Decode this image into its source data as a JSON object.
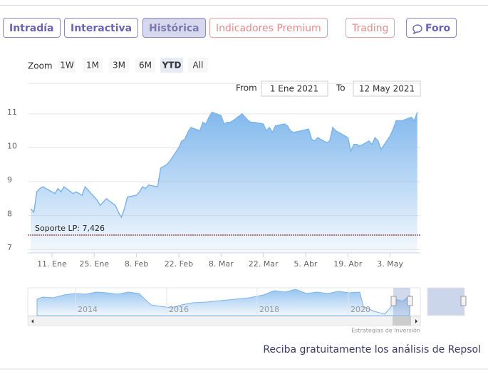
{
  "tabs": [
    "Intradía",
    "Interactiva",
    "Histórica",
    "Indicadores Premium",
    "Trading",
    "Foro"
  ],
  "zoom": {
    "label": "Zoom",
    "buttons": [
      "1W",
      "1M",
      "3M",
      "6M",
      "YTD",
      "All"
    ]
  },
  "range": {
    "from_label": "From",
    "from": "1 Ene 2021",
    "to_label": "To",
    "to": "12 May 2021"
  },
  "navigator": {
    "labels": [
      "2014",
      "2016",
      "2018",
      "2020"
    ]
  },
  "credits": "Estrategias de Inversión",
  "footer": "Reciba gratuitamente los análisis de Repsol",
  "chart_data": {
    "type": "area",
    "color": "#7cb5ec",
    "x": [
      "2021-01-04",
      "2021-01-05",
      "2021-01-06",
      "2021-01-07",
      "2021-01-08",
      "2021-01-11",
      "2021-01-12",
      "2021-01-13",
      "2021-01-14",
      "2021-01-15",
      "2021-01-18",
      "2021-01-19",
      "2021-01-20",
      "2021-01-21",
      "2021-01-22",
      "2021-01-25",
      "2021-01-26",
      "2021-01-27",
      "2021-01-28",
      "2021-01-29",
      "2021-02-01",
      "2021-02-02",
      "2021-02-03",
      "2021-02-04",
      "2021-02-05",
      "2021-02-08",
      "2021-02-09",
      "2021-02-10",
      "2021-02-11",
      "2021-02-12",
      "2021-02-15",
      "2021-02-16",
      "2021-02-17",
      "2021-02-18",
      "2021-02-19",
      "2021-02-22",
      "2021-02-23",
      "2021-02-24",
      "2021-02-25",
      "2021-02-26",
      "2021-03-01",
      "2021-03-02",
      "2021-03-03",
      "2021-03-04",
      "2021-03-05",
      "2021-03-08",
      "2021-03-09",
      "2021-03-10",
      "2021-03-11",
      "2021-03-12",
      "2021-03-15",
      "2021-03-16",
      "2021-03-17",
      "2021-03-18",
      "2021-03-19",
      "2021-03-22",
      "2021-03-23",
      "2021-03-24",
      "2021-03-25",
      "2021-03-26",
      "2021-03-29",
      "2021-03-30",
      "2021-03-31",
      "2021-04-01",
      "2021-04-06",
      "2021-04-07",
      "2021-04-08",
      "2021-04-09",
      "2021-04-12",
      "2021-04-13",
      "2021-04-14",
      "2021-04-15",
      "2021-04-16",
      "2021-04-19",
      "2021-04-20",
      "2021-04-21",
      "2021-04-22",
      "2021-04-23",
      "2021-04-26",
      "2021-04-27",
      "2021-04-28",
      "2021-04-29",
      "2021-04-30",
      "2021-05-03",
      "2021-05-04",
      "2021-05-05",
      "2021-05-06",
      "2021-05-07",
      "2021-05-10",
      "2021-05-11",
      "2021-05-12"
    ],
    "values": [
      8.2,
      8.1,
      8.7,
      8.8,
      8.85,
      8.7,
      8.65,
      8.8,
      8.7,
      8.85,
      8.65,
      8.7,
      8.65,
      8.6,
      8.85,
      8.55,
      8.45,
      8.3,
      8.4,
      8.5,
      8.3,
      8.1,
      7.95,
      8.2,
      8.55,
      8.6,
      8.7,
      8.85,
      8.8,
      8.9,
      8.85,
      9.4,
      9.45,
      9.5,
      9.6,
      10.0,
      10.2,
      10.25,
      10.45,
      10.6,
      10.5,
      10.75,
      10.7,
      10.9,
      11.05,
      10.95,
      10.7,
      10.75,
      10.75,
      10.8,
      11.0,
      10.9,
      10.8,
      10.75,
      10.75,
      10.7,
      10.5,
      10.6,
      10.45,
      10.65,
      10.7,
      10.65,
      10.5,
      10.45,
      10.55,
      10.25,
      10.2,
      10.3,
      10.15,
      10.2,
      10.6,
      10.5,
      10.45,
      10.3,
      9.9,
      10.1,
      10.1,
      10.05,
      10.2,
      10.1,
      10.3,
      10.2,
      9.95,
      10.35,
      10.55,
      10.8,
      10.8,
      10.8,
      10.9,
      10.8,
      11.05
    ],
    "xlim": [
      "2021-01-03",
      "2021-05-13"
    ],
    "xticks": [
      {
        "value": "2021-01-11",
        "label": "11. Ene"
      },
      {
        "value": "2021-01-25",
        "label": "25. Ene"
      },
      {
        "value": "2021-02-08",
        "label": "8. Feb"
      },
      {
        "value": "2021-02-22",
        "label": "22. Feb"
      },
      {
        "value": "2021-03-08",
        "label": "8. Mar"
      },
      {
        "value": "2021-03-22",
        "label": "22. Mar"
      },
      {
        "value": "2021-04-05",
        "label": "5. Abr"
      },
      {
        "value": "2021-04-19",
        "label": "19. Abr"
      },
      {
        "value": "2021-05-03",
        "label": "3. May"
      }
    ],
    "ylim": [
      6.9,
      11.9
    ],
    "yticks": [
      7,
      8,
      9,
      10,
      11
    ],
    "grid": true,
    "annotations": [
      {
        "label": "Soporte LP: 7,426",
        "value": 7.426,
        "color": "#8b0000"
      }
    ]
  }
}
